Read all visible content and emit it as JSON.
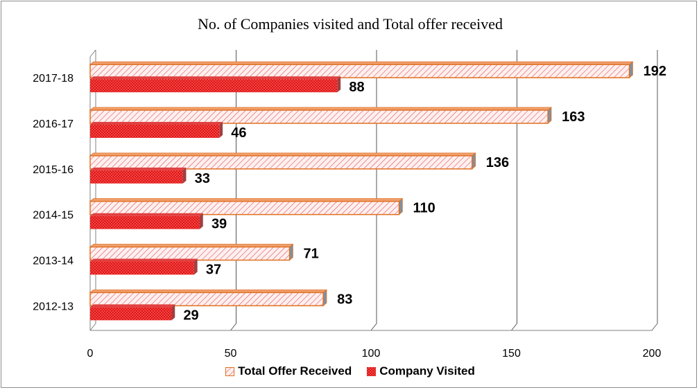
{
  "colors": {
    "offer_fill": "#fff0f0",
    "offer_hatch": "#e05050",
    "offer_border": "#e07020",
    "company_fill": "#ff4040",
    "company_dots": "#b00000",
    "axis": "#808080",
    "grid": "#555555"
  },
  "chart_data": {
    "type": "bar",
    "orientation": "horizontal",
    "title": "No. of Companies visited and Total offer received",
    "categories": [
      "2012-13",
      "2013-14",
      "2014-15",
      "2015-16",
      "2016-17",
      "2017-18"
    ],
    "series": [
      {
        "name": "Total Offer Received",
        "values": [
          83,
          71,
          110,
          136,
          163,
          192
        ]
      },
      {
        "name": "Company Visited",
        "values": [
          29,
          37,
          39,
          33,
          46,
          88
        ]
      }
    ],
    "xlim": [
      0,
      200
    ],
    "x_ticks": [
      0,
      50,
      100,
      150,
      200
    ],
    "grid": true,
    "legend_position": "bottom",
    "data_labels": true
  }
}
